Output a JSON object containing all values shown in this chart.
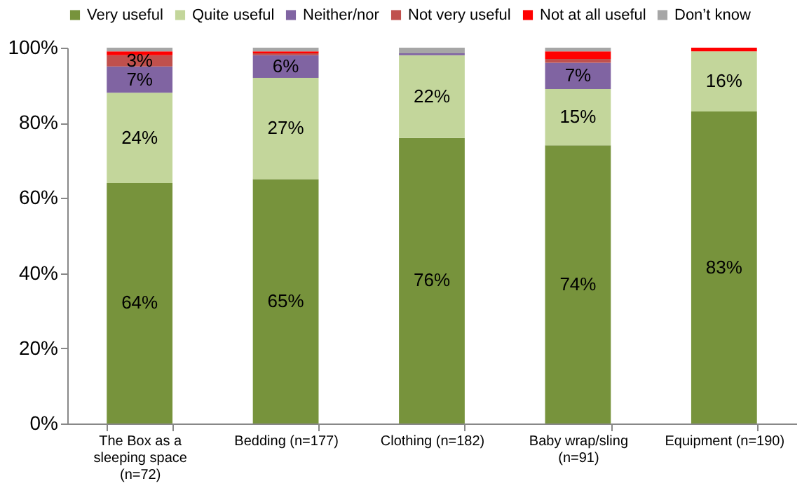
{
  "chart_data": {
    "type": "bar",
    "stacked": true,
    "legend": "top",
    "grid": false,
    "categories": [
      "The Box as a sleeping space (n=72)",
      "Bedding (n=177)",
      "Clothing (n=182)",
      "Baby wrap/sling (n=91)",
      "Equipment (n=190)"
    ],
    "series": [
      {
        "name": "Very useful",
        "color": "#77933c",
        "values": [
          64,
          65,
          76,
          74,
          83
        ],
        "value_labels": [
          "64%",
          "65%",
          "76%",
          "74%",
          "83%"
        ]
      },
      {
        "name": "Quite useful",
        "color": "#c3d69b",
        "values": [
          24,
          27,
          22,
          15,
          16
        ],
        "value_labels": [
          "24%",
          "27%",
          "22%",
          "15%",
          "16%"
        ]
      },
      {
        "name": "Neither/nor",
        "color": "#8064a2",
        "values": [
          7,
          6,
          0.5,
          7,
          0
        ],
        "value_labels": [
          "7%",
          "6%",
          null,
          "7%",
          null
        ]
      },
      {
        "name": "Not very useful",
        "color": "#c0504d",
        "values": [
          3,
          0.5,
          0,
          1,
          0
        ],
        "value_labels": [
          "3%",
          null,
          null,
          null,
          null
        ]
      },
      {
        "name": "Not at all useful",
        "color": "#ff0000",
        "values": [
          1,
          0.5,
          0,
          2,
          1
        ],
        "value_labels": [
          null,
          null,
          null,
          null,
          null
        ]
      },
      {
        "name": "Don’t know",
        "color": "#a6a6a6",
        "values": [
          1,
          1,
          1.5,
          1,
          0
        ],
        "value_labels": [
          null,
          null,
          null,
          null,
          null
        ]
      }
    ],
    "ylim": [
      0,
      100
    ],
    "yticks": [
      {
        "value": 0,
        "label": "0%"
      },
      {
        "value": 20,
        "label": "20%"
      },
      {
        "value": 40,
        "label": "40%"
      },
      {
        "value": 60,
        "label": "60%"
      },
      {
        "value": 80,
        "label": "80%"
      },
      {
        "value": 100,
        "label": "100%"
      }
    ]
  }
}
